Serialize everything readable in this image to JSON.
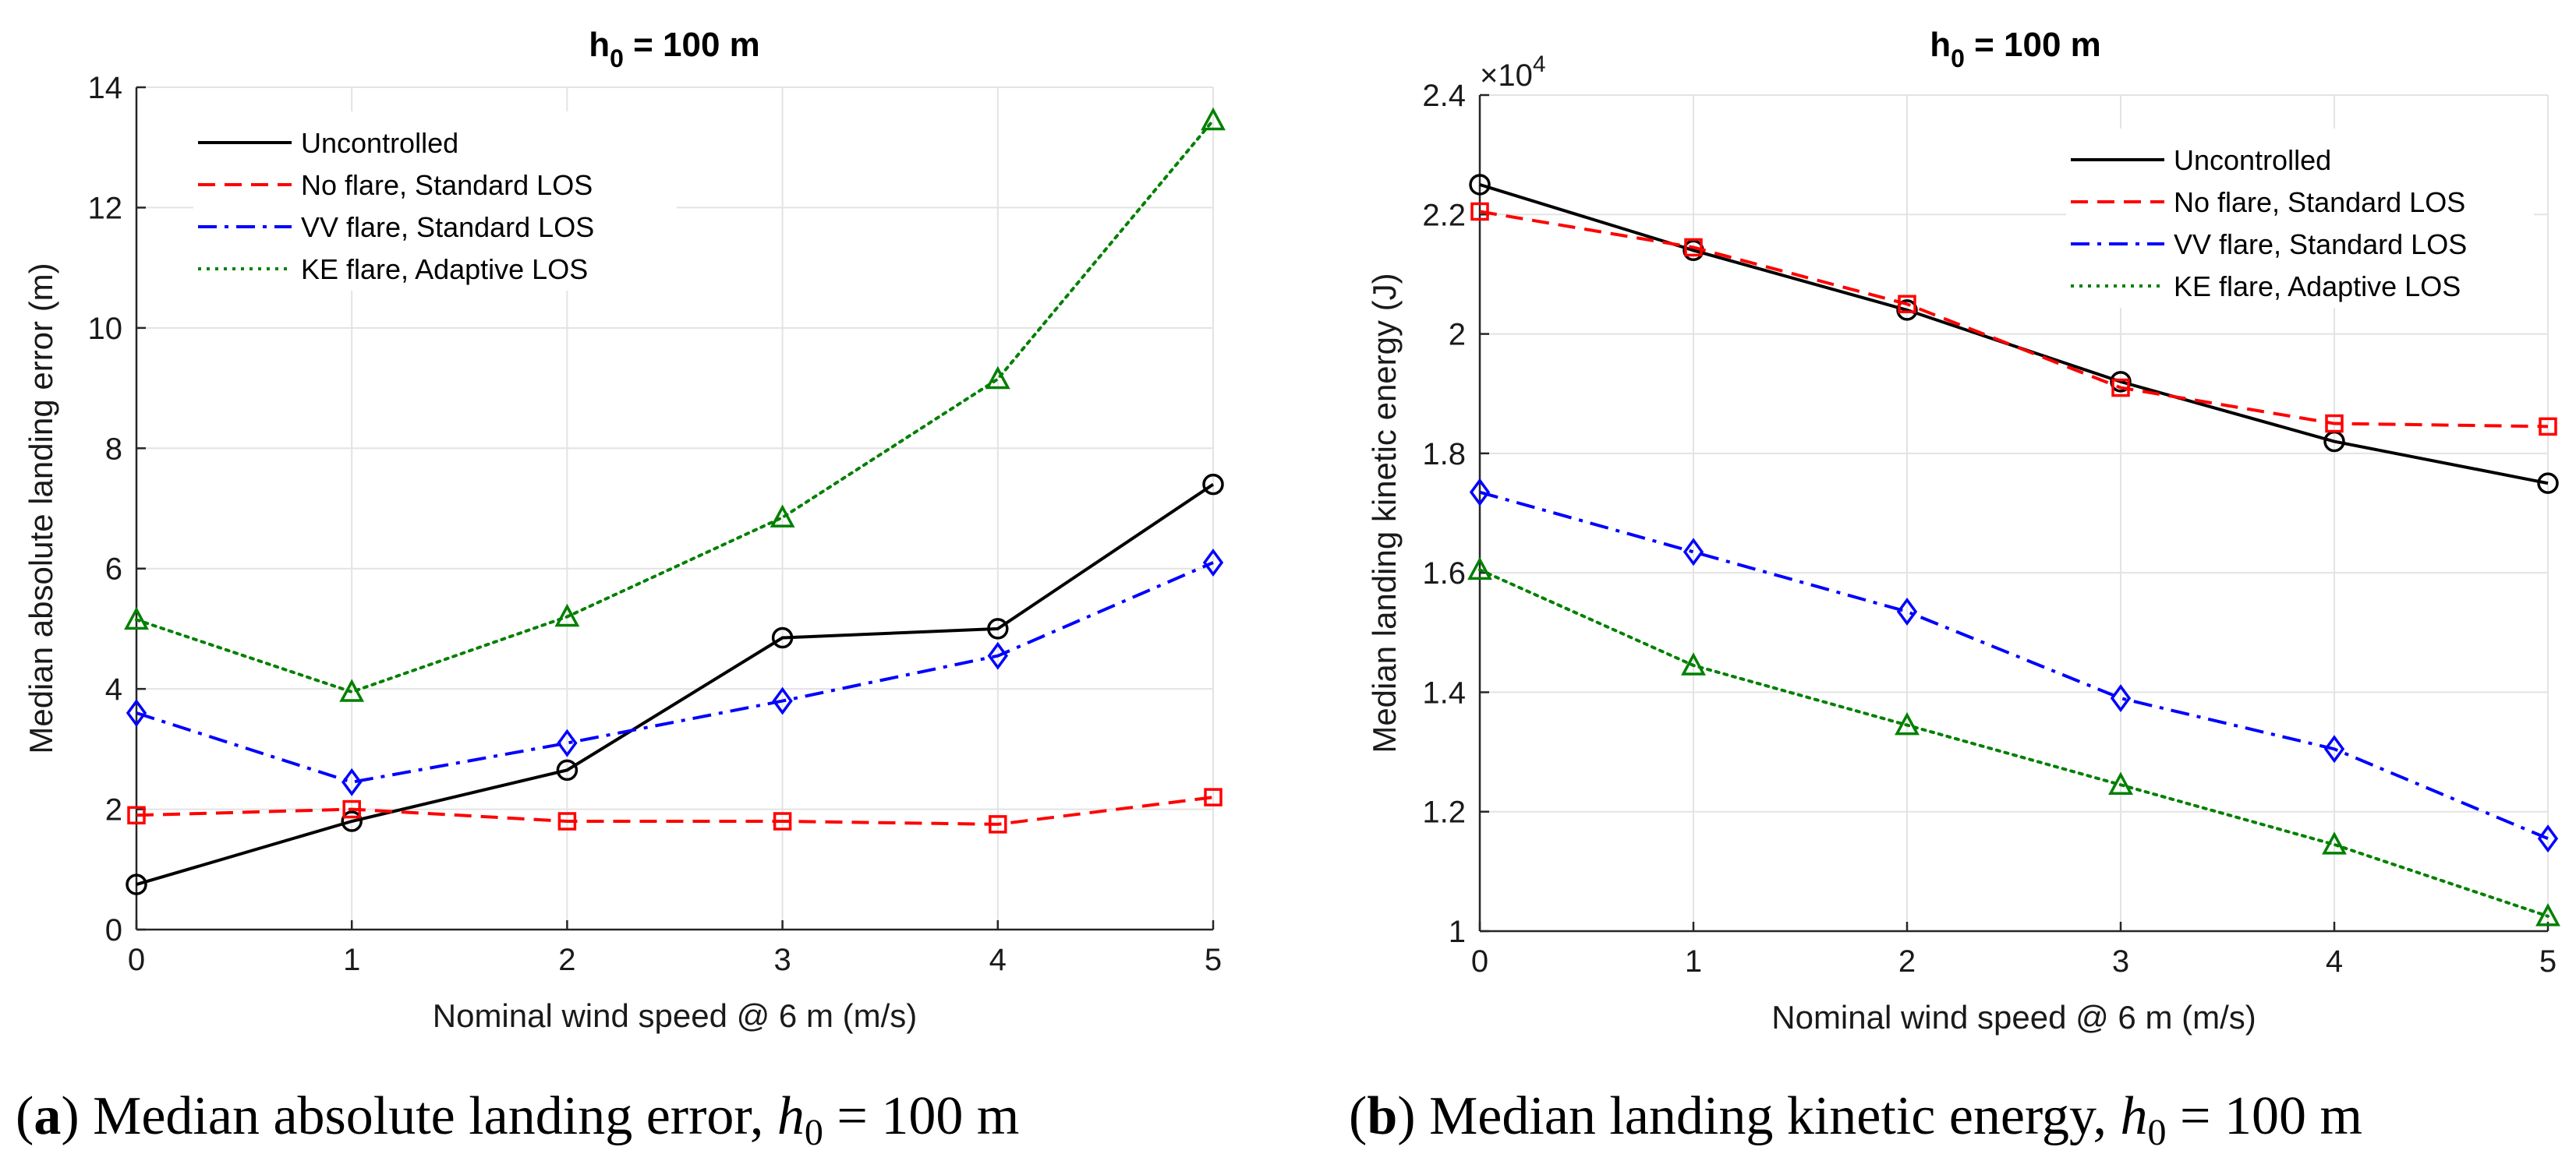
{
  "chart_data": [
    {
      "type": "line",
      "title": "h_0 = 100 m",
      "title_parts": {
        "base": "h",
        "sub": "0",
        "rest": " = 100 m"
      },
      "xlabel": "Nominal wind speed @ 6 m (m/s)",
      "ylabel": "Median absolute landing error (m)",
      "x": [
        0,
        1,
        2,
        3,
        4,
        5
      ],
      "xlim": [
        0,
        5
      ],
      "ylim": [
        0,
        14
      ],
      "xticks": [
        "0",
        "1",
        "2",
        "3",
        "4",
        "5"
      ],
      "yticks": [
        "0",
        "2",
        "4",
        "6",
        "8",
        "10",
        "12",
        "14"
      ],
      "grid": true,
      "legend_position": "top-left",
      "series": [
        {
          "name": "Uncontrolled",
          "values": [
            0.75,
            1.8,
            2.65,
            4.85,
            5.0,
            7.4
          ],
          "color": "#000000",
          "dash": "solid",
          "marker": "circle"
        },
        {
          "name": "No flare, Standard LOS",
          "values": [
            1.9,
            2.0,
            1.8,
            1.8,
            1.75,
            2.2
          ],
          "color": "#ff0000",
          "dash": "dashed",
          "marker": "square"
        },
        {
          "name": "VV flare, Standard LOS",
          "values": [
            3.6,
            2.45,
            3.1,
            3.8,
            4.55,
            6.1
          ],
          "color": "#0000ff",
          "dash": "dashdot",
          "marker": "diamond"
        },
        {
          "name": "KE flare, Adaptive LOS",
          "values": [
            5.15,
            3.95,
            5.2,
            6.85,
            9.15,
            13.45
          ],
          "color": "#008000",
          "dash": "dotted",
          "marker": "triangle"
        }
      ],
      "caption": {
        "letter": "a",
        "text": " Median absolute landing error, ",
        "var": "h",
        "sub": "0",
        "rest": " = 100 m"
      }
    },
    {
      "type": "line",
      "title": "h_0 = 100 m",
      "title_parts": {
        "base": "h",
        "sub": "0",
        "rest": " = 100 m"
      },
      "xlabel": "Nominal wind speed @ 6 m (m/s)",
      "ylabel": "Median landing kinetic energy (J)",
      "x": [
        0,
        1,
        2,
        3,
        4,
        5
      ],
      "xlim": [
        0,
        5
      ],
      "ylim": [
        1.0,
        2.4
      ],
      "y_multiplier": {
        "base": "×10",
        "exp": "4"
      },
      "xticks": [
        "0",
        "1",
        "2",
        "3",
        "4",
        "5"
      ],
      "yticks": [
        "1",
        "1.2",
        "1.4",
        "1.6",
        "1.8",
        "2",
        "2.2",
        "2.4"
      ],
      "grid": true,
      "legend_position": "top-right",
      "series": [
        {
          "name": "Uncontrolled",
          "values": [
            2.25,
            2.14,
            2.04,
            1.92,
            1.82,
            1.75
          ],
          "color": "#000000",
          "dash": "solid",
          "marker": "circle"
        },
        {
          "name": "No flare, Standard LOS",
          "values": [
            2.205,
            2.145,
            2.05,
            1.91,
            1.85,
            1.845
          ],
          "color": "#ff0000",
          "dash": "dashed",
          "marker": "square"
        },
        {
          "name": "VV flare, Standard LOS",
          "values": [
            1.735,
            1.635,
            1.535,
            1.39,
            1.305,
            1.155
          ],
          "color": "#0000ff",
          "dash": "dashdot",
          "marker": "diamond"
        },
        {
          "name": "KE flare, Adaptive LOS",
          "values": [
            1.605,
            1.445,
            1.345,
            1.245,
            1.145,
            1.025
          ],
          "color": "#008000",
          "dash": "dotted",
          "marker": "triangle"
        }
      ],
      "caption": {
        "letter": "b",
        "text": " Median landing kinetic energy, ",
        "var": "h",
        "sub": "0",
        "rest": " = 100 m"
      }
    }
  ]
}
